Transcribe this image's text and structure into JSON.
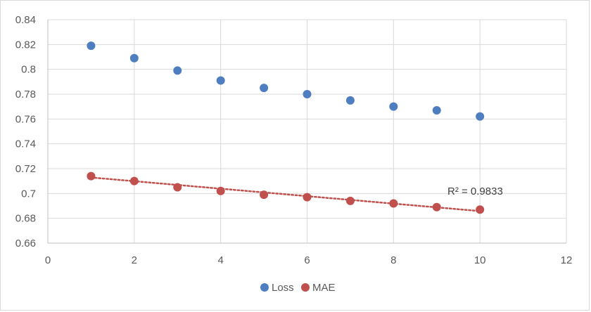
{
  "chart_data": {
    "type": "scatter",
    "xlim": [
      0,
      12
    ],
    "ylim": [
      0.66,
      0.84
    ],
    "x_ticks": [
      0,
      2,
      4,
      6,
      8,
      10,
      12
    ],
    "y_ticks": [
      0.66,
      0.68,
      0.7,
      0.72,
      0.74,
      0.76,
      0.78,
      0.8,
      0.82,
      0.84
    ],
    "x_tick_labels": [
      "0",
      "2",
      "4",
      "6",
      "8",
      "10",
      "12"
    ],
    "y_tick_labels": [
      "0.66",
      "0.68",
      "0.7",
      "0.72",
      "0.74",
      "0.76",
      "0.78",
      "0.8",
      "0.82",
      "0.84"
    ],
    "grid": true,
    "legend_position": "bottom",
    "series": [
      {
        "name": "Loss",
        "color": "#4e7ebf",
        "x": [
          1,
          2,
          3,
          4,
          5,
          6,
          7,
          8,
          9,
          10
        ],
        "y": [
          0.819,
          0.809,
          0.799,
          0.791,
          0.785,
          0.78,
          0.775,
          0.77,
          0.767,
          0.762
        ]
      },
      {
        "name": "MAE",
        "color": "#c0504d",
        "x": [
          1,
          2,
          3,
          4,
          5,
          6,
          7,
          8,
          9,
          10
        ],
        "y": [
          0.714,
          0.71,
          0.705,
          0.702,
          0.699,
          0.697,
          0.694,
          0.692,
          0.689,
          0.687
        ],
        "trendline": {
          "style": "dotted",
          "x": [
            1,
            10
          ],
          "y": [
            0.7129,
            0.6858
          ],
          "r_squared_label": "R² = 0.9833"
        }
      }
    ]
  }
}
